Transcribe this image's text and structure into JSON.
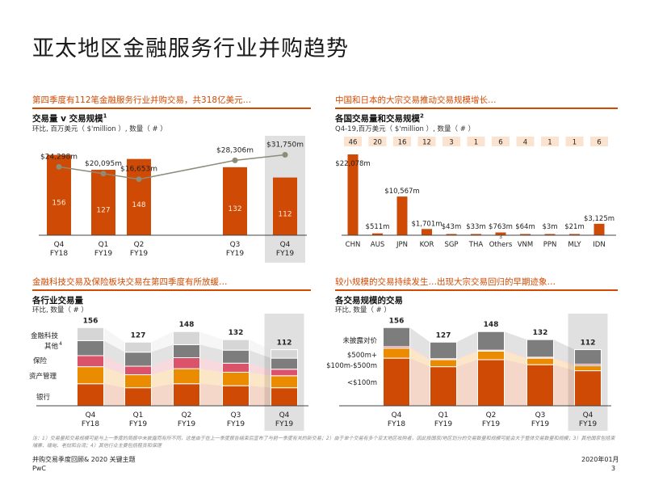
{
  "title": "亚太地区金融服务行业并购趋势",
  "colors": {
    "accent": "#d04a02",
    "bar_dark": "#cf4a05",
    "bar_orange": "#eb8c00",
    "bar_pink": "#db536a",
    "bar_gray": "#7d7d7d",
    "bar_light": "#d6d6d6",
    "line": "#8c8c78",
    "highlight": "#e0e0e0"
  },
  "panel1": {
    "head": "第四季度有112笔金融服务行业并购交易，共318亿美元…",
    "sub_title": "交易量 v 交易规模",
    "sub_sup": "1",
    "sub_sub": "环比, 百万美元（ $'million ）, 数量（ # ）",
    "chart_data": {
      "type": "bar",
      "categories": [
        "Q4 FY18",
        "Q1 FY19",
        "Q2 FY19",
        "Q3 FY19",
        "Q4 FY19"
      ],
      "cat_lines": [
        [
          "Q4",
          "FY18"
        ],
        [
          "Q1",
          "FY19"
        ],
        [
          "Q2",
          "FY19"
        ],
        [
          "Q3",
          "FY19"
        ],
        [
          "Q4",
          "FY19"
        ]
      ],
      "values": [
        156,
        127,
        148,
        132,
        112
      ],
      "bar_labels": [
        "156",
        "127",
        "148",
        "132",
        "112"
      ],
      "line_values": [
        24298,
        20095,
        16653,
        28306,
        31750
      ],
      "line_labels": [
        "$24,298m",
        "$20,095m",
        "$16,653m",
        "$28,306m",
        "$31,750m"
      ],
      "highlight": 4
    }
  },
  "panel2": {
    "head": "中国和日本的大宗交易推动交易规模增长…",
    "sub_title": "各国交易量和交易规模",
    "sub_sup": "2",
    "sub_sub": "Q4-19,百万美元（ $'million ）, 数量（ # ）",
    "chart_data": {
      "type": "bar",
      "categories": [
        "CHN",
        "AUS",
        "JPN",
        "KOR",
        "SGP",
        "THA",
        "Others",
        "VNM",
        "PPN",
        "MLY",
        "IDN"
      ],
      "values": [
        22078,
        511,
        10567,
        1701,
        43,
        33,
        763,
        64,
        3,
        21,
        3125
      ],
      "value_labels": [
        "$22,078m",
        "$511m",
        "$10,567m",
        "$1,701m",
        "$43m",
        "$33m",
        "$763m",
        "$64m",
        "$3m",
        "$21m",
        "$3,125m"
      ],
      "counts": [
        "46",
        "20",
        "16",
        "12",
        "3",
        "1",
        "6",
        "4",
        "1",
        "1",
        "6"
      ],
      "others_sup": "3"
    }
  },
  "panel3": {
    "head": "金融科技交易及保险板块交易在第四季度有所放缓…",
    "sub_title": "各行业交易量",
    "sub_sub": "环比, 数量（ # ）",
    "legend": [
      "金融科技",
      "其他",
      "保险",
      "资产管理",
      "银行"
    ],
    "legend_sup": "4",
    "chart_data": {
      "type": "bar",
      "stacked": true,
      "categories": [
        "Q4 FY18",
        "Q1 FY19",
        "Q2 FY19",
        "Q3 FY19",
        "Q4 FY19"
      ],
      "cat_lines": [
        [
          "Q4",
          "FY18"
        ],
        [
          "Q1",
          "FY19"
        ],
        [
          "Q2",
          "FY19"
        ],
        [
          "Q3",
          "FY19"
        ],
        [
          "Q4",
          "FY19"
        ]
      ],
      "totals": [
        156,
        127,
        148,
        132,
        112
      ],
      "series": [
        {
          "name": "银行",
          "values": [
            44,
            36,
            44,
            40,
            36
          ]
        },
        {
          "name": "资产管理",
          "values": [
            34,
            26,
            30,
            27,
            24
          ]
        },
        {
          "name": "保险",
          "values": [
            22,
            17,
            22,
            18,
            13
          ]
        },
        {
          "name": "其他",
          "values": [
            30,
            28,
            26,
            26,
            22
          ]
        },
        {
          "name": "金融科技",
          "values": [
            26,
            20,
            26,
            21,
            17
          ]
        }
      ],
      "highlight": 4
    }
  },
  "panel4": {
    "head": "较小规模的交易持续发生…出现大宗交易回归的早期迹象…",
    "sub_title": "各交易规模的交易",
    "sub_sub": "环比, 数量（ # ）",
    "legend": [
      "未披露对价",
      "$500m+",
      "$100m-$500m",
      "<$100m"
    ],
    "chart_data": {
      "type": "bar",
      "stacked": true,
      "categories": [
        "Q4 FY18",
        "Q1 FY19",
        "Q2 FY19",
        "Q3 FY19",
        "Q4 FY19"
      ],
      "cat_lines": [
        [
          "Q4",
          "FY18"
        ],
        [
          "Q1",
          "FY19"
        ],
        [
          "Q2",
          "FY19"
        ],
        [
          "Q3",
          "FY19"
        ],
        [
          "Q4",
          "FY19"
        ]
      ],
      "totals": [
        156,
        127,
        148,
        132,
        112
      ],
      "series": [
        {
          "name": "<$100m",
          "values": [
            95,
            78,
            92,
            82,
            70
          ]
        },
        {
          "name": "$100m-$500m",
          "values": [
            20,
            14,
            17,
            13,
            10
          ]
        },
        {
          "name": "$500m+",
          "values": [
            3,
            2,
            2,
            2,
            3
          ]
        },
        {
          "name": "未披露对价",
          "values": [
            38,
            33,
            37,
            35,
            29
          ]
        }
      ],
      "highlight": 4
    }
  },
  "footnote": "注：1）交易量和交易规模可能与上一季度的简报中未披露而有所不同，这是由于在上一季度报告结束后宣布了与前一季度有关的新交易；2）由于单个交易有多个亚太地区收购者，因此按国家/地区划分的交易数量和规模可能会大于整体交易数量和规模；3）其他国家包括柬埔寨、缅甸、老挝和台湾；4）其他行业主要包括租赁和保理",
  "footer": {
    "left_line1": "并购交易季度回顾& 2020 关键主题",
    "left_line2": "PwC",
    "date": "2020年01月",
    "page": "3"
  }
}
